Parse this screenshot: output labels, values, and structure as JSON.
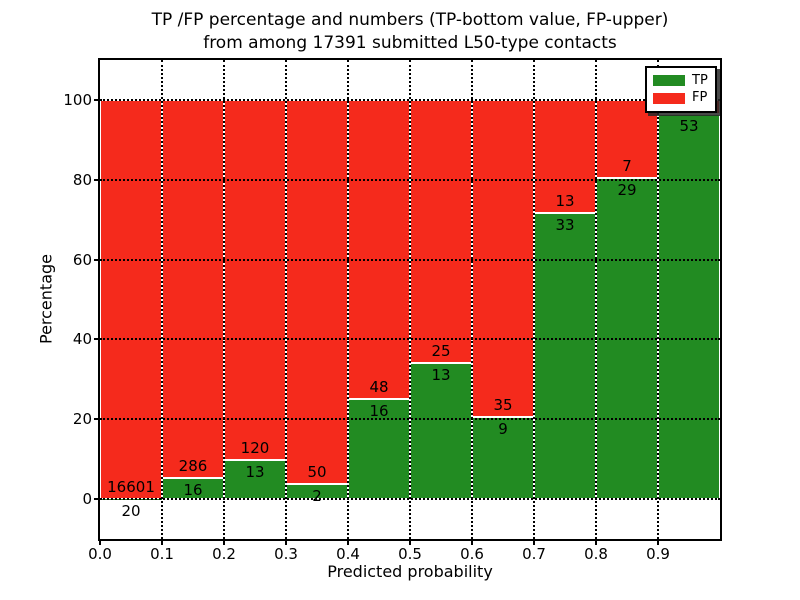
{
  "chart_data": {
    "type": "bar",
    "stacked": true,
    "title_lines": [
      "TP /FP percentage and numbers (TP-bottom value, FP-upper)",
      "from among 17391 submitted L50-type contacts"
    ],
    "title": "TP /FP percentage and numbers (TP-bottom value, FP-upper) from among 17391 submitted L50-type contacts",
    "xlabel": "Predicted probability",
    "ylabel": "Percentage",
    "xlim": [
      0.0,
      1.0
    ],
    "ylim": [
      -10,
      110
    ],
    "grid": true,
    "legend_position": "upper right",
    "colors": {
      "tp": "#228b22",
      "fp": "#f52a1c",
      "grid": "#000000",
      "background": "#ffffff"
    },
    "legend": [
      {
        "label": "TP",
        "color": "#228b22"
      },
      {
        "label": "FP",
        "color": "#f52a1c"
      }
    ],
    "yticks": [
      0,
      20,
      40,
      60,
      80,
      100
    ],
    "xticks": [
      {
        "value": 0.0,
        "label": "0.0"
      },
      {
        "value": 0.1,
        "label": "0.1"
      },
      {
        "value": 0.2,
        "label": "0.2"
      },
      {
        "value": 0.3,
        "label": "0.3"
      },
      {
        "value": 0.4,
        "label": "0.4"
      },
      {
        "value": 0.5,
        "label": "0.5"
      },
      {
        "value": 0.6,
        "label": "0.6"
      },
      {
        "value": 0.7,
        "label": "0.7"
      },
      {
        "value": 0.8,
        "label": "0.8"
      },
      {
        "value": 0.9,
        "label": "0.9"
      }
    ],
    "bars": [
      {
        "x0": 0.0,
        "x1": 0.1,
        "tp_count": 20,
        "fp_count": 16601,
        "tp_pct": 0.12
      },
      {
        "x0": 0.1,
        "x1": 0.2,
        "tp_count": 16,
        "fp_count": 286,
        "tp_pct": 5.3
      },
      {
        "x0": 0.2,
        "x1": 0.3,
        "tp_count": 13,
        "fp_count": 120,
        "tp_pct": 9.77
      },
      {
        "x0": 0.3,
        "x1": 0.4,
        "tp_count": 2,
        "fp_count": 50,
        "tp_pct": 3.85
      },
      {
        "x0": 0.4,
        "x1": 0.5,
        "tp_count": 16,
        "fp_count": 48,
        "tp_pct": 25.0
      },
      {
        "x0": 0.5,
        "x1": 0.6,
        "tp_count": 13,
        "fp_count": 25,
        "tp_pct": 34.21
      },
      {
        "x0": 0.6,
        "x1": 0.7,
        "tp_count": 9,
        "fp_count": 35,
        "tp_pct": 20.45
      },
      {
        "x0": 0.7,
        "x1": 0.8,
        "tp_count": 33,
        "fp_count": 13,
        "tp_pct": 71.74
      },
      {
        "x0": 0.8,
        "x1": 0.9,
        "tp_count": 29,
        "fp_count": 7,
        "tp_pct": 80.56
      },
      {
        "x0": 0.9,
        "x1": 1.0,
        "tp_count": 53,
        "fp_count": null,
        "tp_pct": 96.4
      }
    ]
  }
}
